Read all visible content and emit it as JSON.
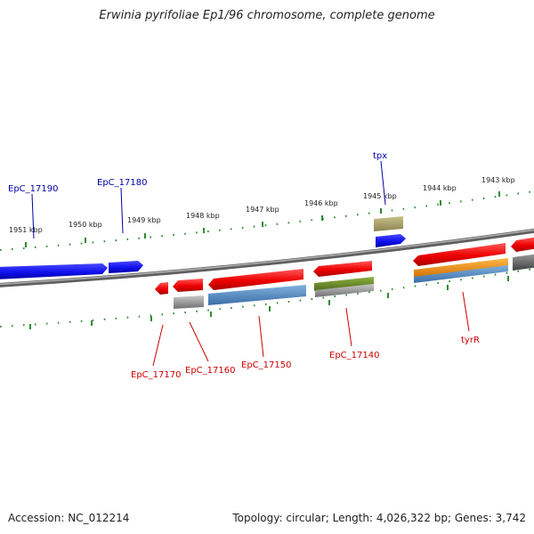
{
  "title": "Erwinia pyrifoliae Ep1/96 chromosome, complete genome",
  "footer": {
    "accession": "Accession: NC_012214",
    "summary": "Topology: circular; Length: 4,026,322 bp; Genes: 3,742"
  },
  "ticks": [
    "1951 kbp",
    "1950 kbp",
    "1949 kbp",
    "1948 kbp",
    "1947 kbp",
    "1946 kbp",
    "1945 kbp",
    "1944 kbp",
    "1943 kbp"
  ],
  "gene_labels": {
    "forward": [
      "EpC_17190",
      "EpC_17180",
      "tpx"
    ],
    "reverse": [
      "EpC_17170",
      "EpC_17160",
      "EpC_17150",
      "EpC_17140",
      "tyrR"
    ]
  },
  "colors": {
    "cds": "#ee0000",
    "cds_forward": "#1010ee",
    "gene_gray": "#8c8c8c",
    "gene_blue": "#4a86bf",
    "gene_olive": "#6b8e23",
    "gene_orange": "#f0920a",
    "gene_khaki": "#a8a060",
    "backbone": "#7a7a7a",
    "ruler": "#2e8b2e",
    "label_forward": "#0000aa",
    "label_reverse": "#cc0000"
  }
}
